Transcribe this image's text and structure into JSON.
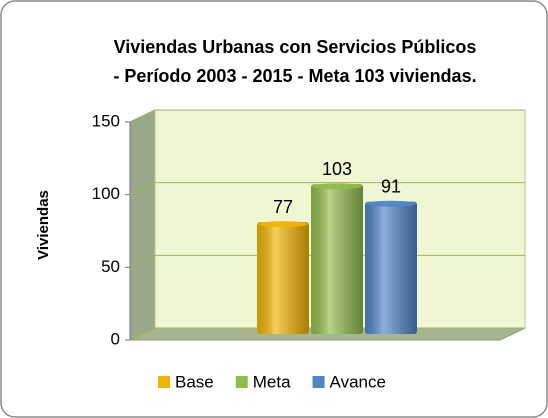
{
  "chart_data": {
    "type": "bar",
    "title": [
      "Viviendas Urbanas con Servicios Públicos",
      "- Período 2003 - 2015 - Meta 103 viviendas."
    ],
    "y_label": "Viviendas",
    "series": [
      {
        "name": "Base",
        "color": "#f2b400",
        "values": [
          77
        ]
      },
      {
        "name": "Meta",
        "color": "#8fbd4c",
        "values": [
          103
        ]
      },
      {
        "name": "Avance",
        "color": "#4f86c9",
        "values": [
          91
        ]
      }
    ],
    "ylim": [
      0,
      150
    ],
    "yticks": [
      0,
      50,
      100,
      150
    ],
    "grid": true,
    "legend": "bottom"
  }
}
